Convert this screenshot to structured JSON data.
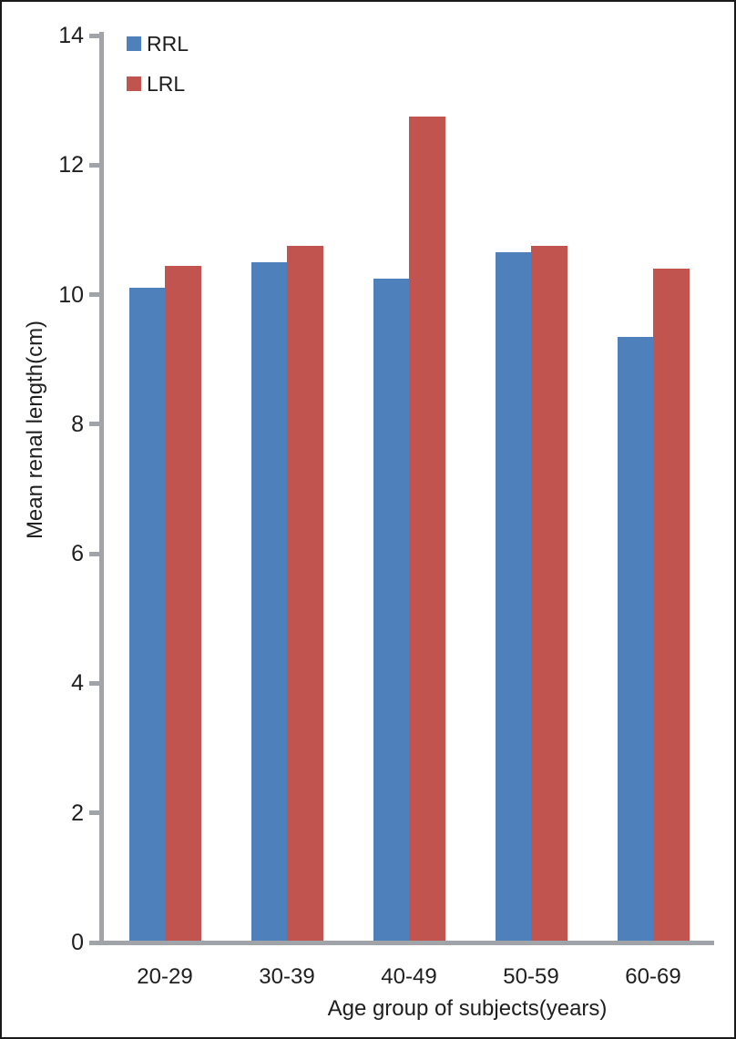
{
  "chart_data": {
    "type": "bar",
    "title": "",
    "categories": [
      "20-29",
      "30-39",
      "40-49",
      "50-59",
      "60-69"
    ],
    "series": [
      {
        "name": "RRL",
        "color": "#4E81BC",
        "values": [
          10.1,
          10.5,
          10.25,
          10.65,
          9.35
        ]
      },
      {
        "name": "LRL",
        "color": "#C2544F",
        "values": [
          10.45,
          10.75,
          12.75,
          10.75,
          10.4
        ]
      }
    ],
    "xlabel": "Age group of subjects(years)",
    "ylabel": "Mean renal length(cm)",
    "ylim": [
      0,
      14
    ],
    "yticks": [
      0,
      2,
      4,
      6,
      8,
      10,
      12,
      14
    ],
    "legend": {
      "position": "top-left",
      "entries": [
        "RRL",
        "LRL"
      ]
    },
    "grid": false
  },
  "colors": {
    "axis": "#A0A4A8",
    "text": "#1F1F1F",
    "background": "#FFFFFF",
    "border": "#1A1A1A"
  }
}
